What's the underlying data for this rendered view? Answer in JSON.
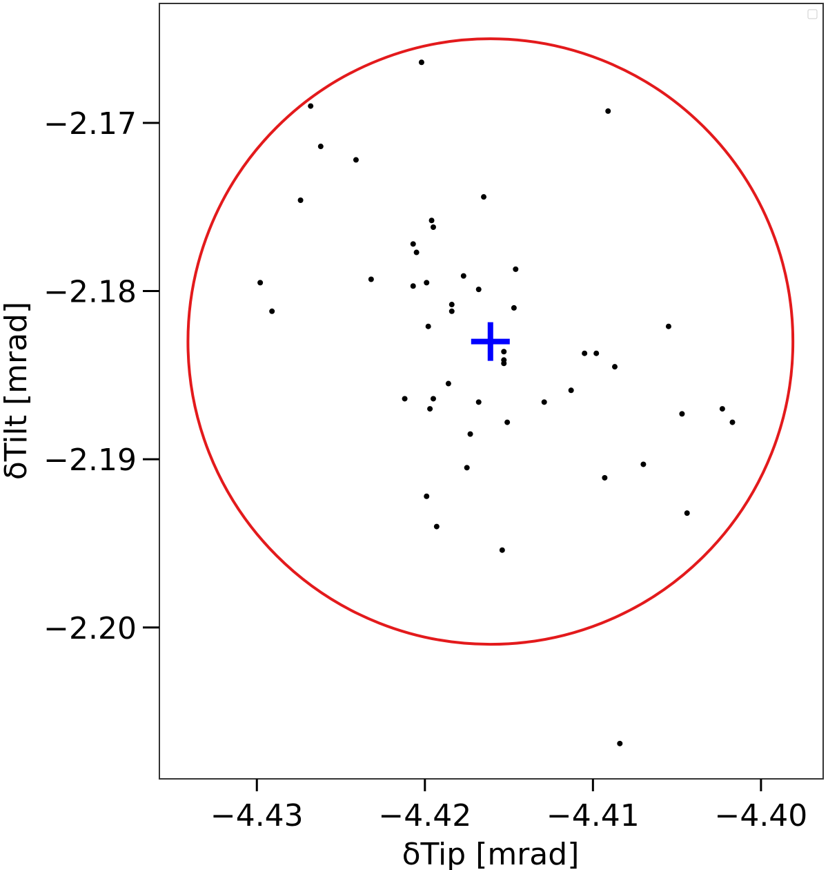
{
  "chart_data": {
    "type": "scatter",
    "xlabel": "δTip [mrad]",
    "ylabel": "δTilt [mrad]",
    "xlim": [
      -4.4358,
      -4.3963
    ],
    "ylim": [
      -2.209,
      -2.1629
    ],
    "xticks": [
      {
        "value": -4.43,
        "label": "−4.43"
      },
      {
        "value": -4.42,
        "label": "−4.42"
      },
      {
        "value": -4.41,
        "label": "−4.41"
      },
      {
        "value": -4.4,
        "label": "−4.40"
      }
    ],
    "yticks": [
      {
        "value": -2.17,
        "label": "−2.17"
      },
      {
        "value": -2.18,
        "label": "−2.18"
      },
      {
        "value": -2.19,
        "label": "−2.19"
      },
      {
        "value": -2.2,
        "label": "−2.20"
      }
    ],
    "series": [
      {
        "color": "#000000",
        "x": [
          -4.4202,
          -4.4268,
          -4.4091,
          -4.4262,
          -4.4241,
          -4.4274,
          -4.4165,
          -4.4196,
          -4.4195,
          -4.4207,
          -4.4205,
          -4.4146,
          -4.4232,
          -4.4298,
          -4.4177,
          -4.4199,
          -4.4207,
          -4.4168,
          -4.4184,
          -4.4184,
          -4.4291,
          -4.4147,
          -4.4198,
          -4.4055,
          -4.4153,
          -4.4105,
          -4.4098,
          -4.4153,
          -4.4153,
          -4.4087,
          -4.4186,
          -4.4212,
          -4.4195,
          -4.4113,
          -4.4129,
          -4.4168,
          -4.4197,
          -4.4023,
          -4.4047,
          -4.4017,
          -4.4151,
          -4.4173,
          -4.4175,
          -4.407,
          -4.4093,
          -4.4199,
          -4.4044,
          -4.4193,
          -4.4154,
          -4.4084
        ],
        "values": [
          -2.1664,
          -2.169,
          -2.1693,
          -2.1714,
          -2.1722,
          -2.1746,
          -2.1744,
          -2.1758,
          -2.1762,
          -2.1772,
          -2.1777,
          -2.1787,
          -2.1793,
          -2.1795,
          -2.1791,
          -2.1795,
          -2.1797,
          -2.1799,
          -2.1808,
          -2.1812,
          -2.1812,
          -2.181,
          -2.1821,
          -2.1821,
          -2.1836,
          -2.1837,
          -2.1837,
          -2.1841,
          -2.1843,
          -2.1845,
          -2.1855,
          -2.1864,
          -2.1864,
          -2.1859,
          -2.1866,
          -2.1866,
          -2.187,
          -2.187,
          -2.1873,
          -2.1878,
          -2.1878,
          -2.1885,
          -2.1905,
          -2.1903,
          -2.1911,
          -2.1922,
          -2.1932,
          -2.194,
          -2.1954,
          -2.2069
        ]
      }
    ],
    "circle": {
      "center": [
        -4.4161,
        -2.183
      ],
      "radius": 0.018,
      "color": "#e31a1c",
      "center_color": "#0000ff"
    }
  }
}
